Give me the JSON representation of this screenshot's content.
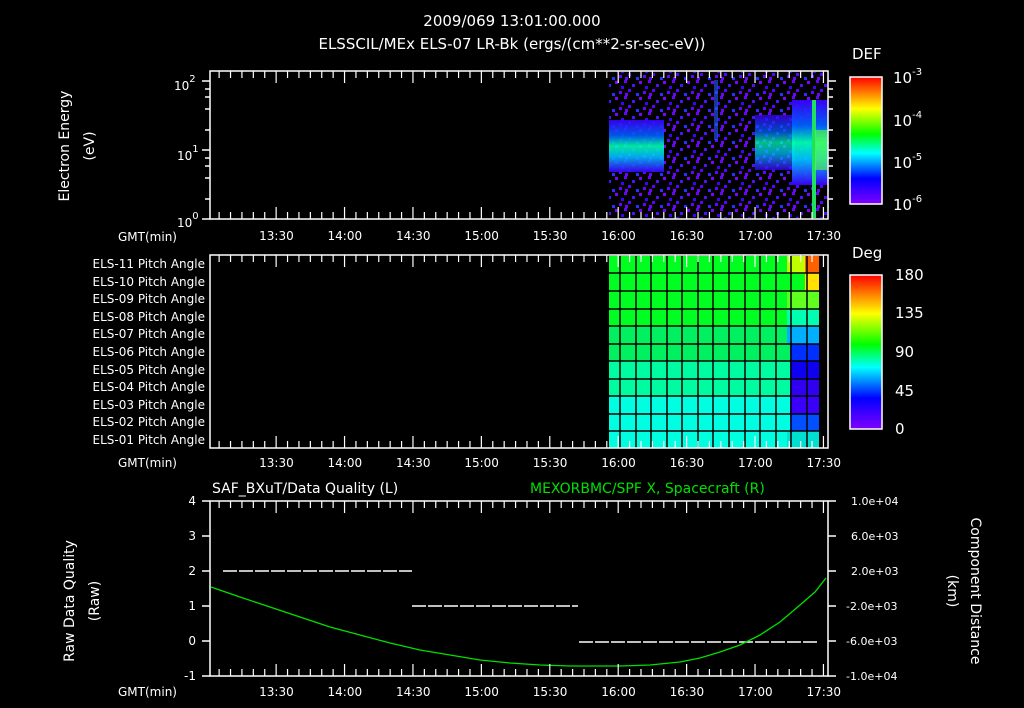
{
  "header": {
    "timestamp": "2009/069 13:01:00.000",
    "title": "ELSSCIL/MEx ELS-07 LR-Bk  (ergs/(cm**2-sr-sec-eV))"
  },
  "panel1": {
    "ylabel": "Electron Energy",
    "yunits": "(eV)",
    "yticks": [
      {
        "base": "10",
        "exp": "2"
      },
      {
        "base": "10",
        "exp": "1"
      },
      {
        "base": "10",
        "exp": "0"
      }
    ],
    "colorbar": {
      "label": "DEF",
      "ticks": [
        {
          "base": "10",
          "exp": "-3"
        },
        {
          "base": "10",
          "exp": "-4"
        },
        {
          "base": "10",
          "exp": "-5"
        },
        {
          "base": "10",
          "exp": "-6"
        }
      ]
    },
    "xlabel": "GMT(min)"
  },
  "panel2": {
    "rows": [
      "ELS-11 Pitch Angle",
      "ELS-10 Pitch Angle",
      "ELS-09 Pitch Angle",
      "ELS-08 Pitch Angle",
      "ELS-07 Pitch Angle",
      "ELS-06 Pitch Angle",
      "ELS-05 Pitch Angle",
      "ELS-04 Pitch Angle",
      "ELS-03 Pitch Angle",
      "ELS-02 Pitch Angle",
      "ELS-01 Pitch Angle"
    ],
    "colorbar": {
      "label": "Deg",
      "ticks": [
        "180",
        "135",
        "90",
        "45",
        "0"
      ]
    },
    "xlabel": "GMT(min)"
  },
  "panel3": {
    "left_title": "SAF_BXuT/Data Quality (L)",
    "right_title": "MEXORBMC/SPF X, Spacecraft (R)",
    "ylabel_left": "Raw Data Quality",
    "yunits_left": "(Raw)",
    "ylabel_right": "Component Distance",
    "yunits_right": "(km)",
    "yticks_left": [
      "4",
      "3",
      "2",
      "1",
      "0",
      "-1"
    ],
    "yticks_right": [
      "1.0e+04",
      "6.0e+03",
      "2.0e+03",
      "-2.0e+03",
      "-6.0e+03",
      "-1.0e+04"
    ],
    "xlabel": "GMT(min)"
  },
  "xticks": [
    "13:30",
    "14:00",
    "14:30",
    "15:00",
    "15:30",
    "16:00",
    "16:30",
    "17:00",
    "17:30"
  ],
  "colors": {
    "background": "#000000",
    "foreground": "#ffffff",
    "spacecraft_line": "#00e000"
  },
  "chart_data": [
    {
      "type": "heatmap",
      "title": "ELSSCIL/MEx ELS-07 LR-Bk (ergs/(cm**2-sr-sec-eV))",
      "xlabel": "GMT(min)",
      "ylabel": "Electron Energy (eV)",
      "yscale": "log",
      "ylim": [
        1,
        200
      ],
      "xlim": [
        "13:01",
        "17:32"
      ],
      "colorbar": {
        "label": "DEF",
        "scale": "log",
        "range": [
          1e-06,
          0.001
        ]
      },
      "notes": "No data before ~15:57; sparse purple noise 16:00-17:30 with green/cyan band near 5-10 eV at 16:00-16:20, 17:00-17:10 and 17:15-17:30"
    },
    {
      "type": "heatmap",
      "xlabel": "GMT(min)",
      "rows": [
        "ELS-11",
        "ELS-10",
        "ELS-09",
        "ELS-08",
        "ELS-07",
        "ELS-06",
        "ELS-05",
        "ELS-04",
        "ELS-03",
        "ELS-02",
        "ELS-01"
      ],
      "colorbar": {
        "label": "Deg",
        "range": [
          0,
          180
        ]
      },
      "notes": "Data from ~15:57; pitch angles ~100 deg (green) for upper anodes, ~65-75 deg (cyan) for lower, falling to ~30 deg near 17:15-17:30 for ELS-06..02 and rising to ~170 deg for ELS-11"
    },
    {
      "type": "line",
      "title_left": "SAF_BXuT/Data Quality (L)",
      "title_right": "MEXORBMC/SPF X, Spacecraft (R)",
      "xlabel": "GMT(min)",
      "ylabel_left": "Raw Data Quality (Raw)",
      "ylabel_right": "Component Distance (km)",
      "ylim_left": [
        -1,
        4
      ],
      "ylim_right": [
        -10000,
        10000
      ],
      "series": [
        {
          "name": "Data Quality",
          "axis": "left",
          "x": [
            "13:10",
            "14:29",
            "14:30",
            "15:42",
            "15:43",
            "17:28"
          ],
          "values": [
            2,
            2,
            1,
            1,
            0,
            0
          ]
        },
        {
          "name": "SPF X Spacecraft",
          "axis": "right",
          "x": [
            "13:01",
            "13:30",
            "14:00",
            "14:30",
            "15:00",
            "15:30",
            "16:00",
            "16:30",
            "17:00",
            "17:30"
          ],
          "values": [
            -200,
            -1800,
            -3400,
            -5000,
            -6300,
            -7200,
            -7600,
            -6800,
            -4000,
            2500
          ]
        }
      ]
    }
  ]
}
